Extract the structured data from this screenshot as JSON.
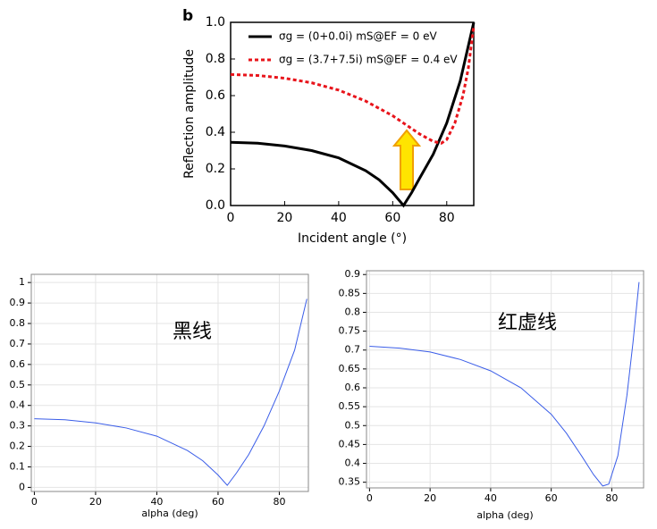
{
  "chart_data": [
    {
      "type": "line",
      "annotation": "b",
      "xlabel": "Incident angle (°)",
      "ylabel": "Reflection amplitude",
      "xlim": [
        0,
        90
      ],
      "ylim": [
        0,
        1
      ],
      "xticks": [
        0,
        20,
        40,
        60,
        80
      ],
      "yticks": [
        {
          "value": 0,
          "label": "0.0"
        },
        0.2,
        0.4,
        0.6,
        0.8,
        {
          "value": 1,
          "label": "1.0"
        }
      ],
      "grid": false,
      "legend": "upper left",
      "series": [
        {
          "name": "σg = (0+0.0i) mS@EF = 0 eV",
          "color": "#000000",
          "line_style": "solid",
          "x": [
            0,
            10,
            20,
            30,
            40,
            50,
            55,
            60,
            64,
            67,
            70,
            75,
            80,
            85,
            90
          ],
          "values": [
            0.345,
            0.34,
            0.325,
            0.3,
            0.26,
            0.19,
            0.14,
            0.07,
            0.0,
            0.07,
            0.15,
            0.28,
            0.45,
            0.68,
            1.0
          ]
        },
        {
          "name": "σg = (3.7+7.5i) mS@EF = 0.4 eV",
          "color": "#e8141b",
          "line_style": "dotted",
          "x": [
            0,
            10,
            20,
            30,
            40,
            50,
            60,
            65,
            70,
            75,
            78,
            80,
            83,
            86,
            88,
            90
          ],
          "values": [
            0.715,
            0.71,
            0.695,
            0.67,
            0.63,
            0.57,
            0.49,
            0.44,
            0.39,
            0.35,
            0.34,
            0.36,
            0.45,
            0.6,
            0.75,
            0.98
          ]
        }
      ]
    },
    {
      "type": "line",
      "annotation": "黑线",
      "xlabel": "alpha (deg)",
      "xlim": [
        -1,
        89.5
      ],
      "ylim": [
        -0.02,
        1.04
      ],
      "xticks": [
        0,
        20,
        40,
        60,
        80
      ],
      "yticks": [
        0,
        0.1,
        0.2,
        0.3,
        0.4,
        0.5,
        0.6,
        0.7,
        0.8,
        0.9,
        1
      ],
      "grid": true,
      "series": [
        {
          "color": "#3a5de8",
          "line_style": "solid",
          "x": [
            0,
            10,
            20,
            30,
            40,
            50,
            55,
            60,
            63,
            66,
            70,
            75,
            80,
            85,
            89
          ],
          "values": [
            0.335,
            0.33,
            0.315,
            0.29,
            0.25,
            0.18,
            0.13,
            0.06,
            0.01,
            0.07,
            0.16,
            0.3,
            0.47,
            0.67,
            0.92
          ]
        }
      ]
    },
    {
      "type": "line",
      "annotation": "红虚线",
      "xlabel": "alpha (deg)",
      "xlim": [
        -1,
        90.5
      ],
      "ylim": [
        0.335,
        0.91
      ],
      "xticks": [
        0,
        20,
        40,
        60,
        80
      ],
      "yticks": [
        0.35,
        0.4,
        0.45,
        0.5,
        0.55,
        0.6,
        0.65,
        0.7,
        0.75,
        0.8,
        0.85,
        0.9
      ],
      "grid": true,
      "series": [
        {
          "color": "#3a5de8",
          "line_style": "solid",
          "x": [
            0,
            10,
            20,
            30,
            40,
            50,
            60,
            65,
            70,
            74,
            77,
            79,
            82,
            85,
            87,
            89
          ],
          "values": [
            0.71,
            0.705,
            0.695,
            0.675,
            0.645,
            0.6,
            0.53,
            0.48,
            0.42,
            0.37,
            0.34,
            0.345,
            0.42,
            0.58,
            0.72,
            0.88
          ]
        }
      ]
    }
  ]
}
